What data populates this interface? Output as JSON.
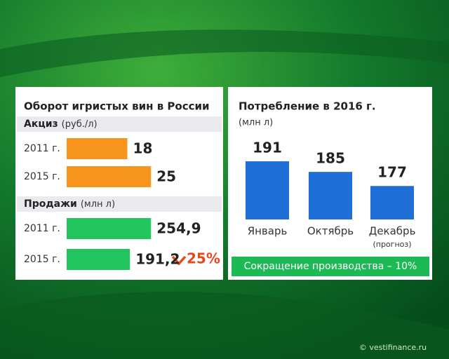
{
  "chart_data": [
    {
      "type": "hbar",
      "title": "Оборот игристых вин в России",
      "subtitle": "Акциз",
      "unit": "(руб./л)",
      "categories": [
        "2011 г.",
        "2015 г."
      ],
      "values": [
        18,
        25
      ],
      "color": "#f7941d",
      "xlim": [
        0,
        26
      ]
    },
    {
      "type": "hbar",
      "subtitle": "Продажи",
      "unit": "(млн л)",
      "categories": [
        "2011 г.",
        "2015 г."
      ],
      "values": [
        254.9,
        191.2
      ],
      "value_labels": [
        "254,9",
        "191,2"
      ],
      "color": "#22c55e",
      "xlim": [
        0,
        265
      ],
      "annotation": "25%"
    },
    {
      "type": "bar",
      "title": "Потребление в 2016 г.",
      "unit": "(млн л)",
      "categories": [
        "Январь",
        "Октябрь",
        "Декабрь"
      ],
      "values": [
        191,
        185,
        177
      ],
      "color": "#1f6fd6",
      "ylim": [
        158,
        195
      ],
      "category_note": "(прогноз)",
      "footnote": "Сокращение производства – 10%"
    }
  ],
  "watermark": "© vestifinance.ru"
}
